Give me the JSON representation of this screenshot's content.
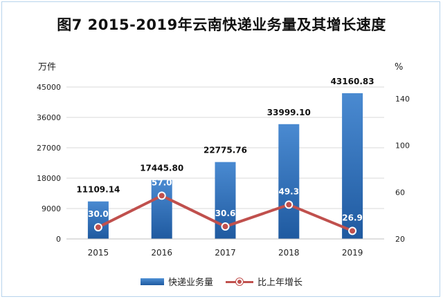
{
  "chart_data": {
    "type": "bar+line",
    "title": "图7  2015-2019年云南快递业务量及其增长速度",
    "categories": [
      "2015",
      "2016",
      "2017",
      "2018",
      "2019"
    ],
    "left_axis": {
      "unit": "万件",
      "ylim": [
        0,
        45000
      ],
      "ticks": [
        "0",
        "9000",
        "18000",
        "27000",
        "36000",
        "45000"
      ]
    },
    "right_axis": {
      "unit": "%",
      "ylim": [
        20,
        150
      ],
      "ticks": [
        "20",
        "60",
        "100",
        "140"
      ]
    },
    "series": [
      {
        "name": "快递业务量",
        "type": "bar",
        "axis": "left",
        "color": "#2e6fbf",
        "values": [
          11109.14,
          17445.8,
          22775.76,
          33999.1,
          43160.83
        ],
        "labels": [
          "11109.14",
          "17445.80",
          "22775.76",
          "33999.10",
          "43160.83"
        ]
      },
      {
        "name": "比上年增长",
        "type": "line",
        "axis": "right",
        "color": "#c0504d",
        "values": [
          30.0,
          57.0,
          30.6,
          49.3,
          26.9
        ],
        "labels": [
          "30.0",
          "57.0",
          "30.6",
          "49.3",
          "26.9"
        ]
      }
    ],
    "grid": true,
    "legend": "bottom"
  }
}
